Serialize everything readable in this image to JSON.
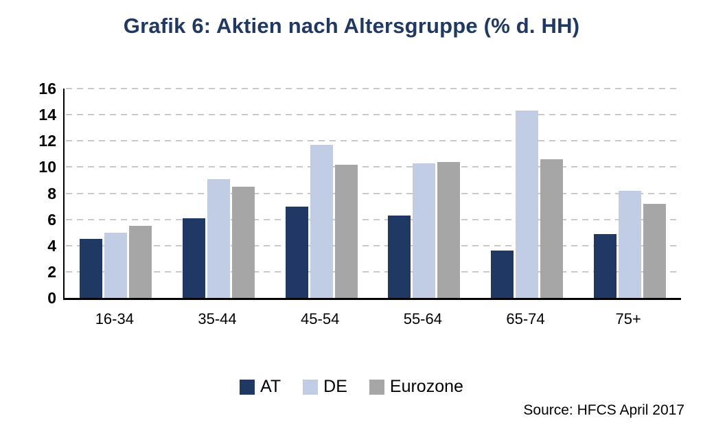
{
  "title": "Grafik 6: Aktien nach Altersgruppe (% d. HH)",
  "source": "Source: HFCS April 2017",
  "colors": {
    "title": "#1F3864",
    "axis": "#000000",
    "gridline": "#C9C9C9",
    "background": "#FFFFFF"
  },
  "chart_data": {
    "type": "bar",
    "title": "Grafik 6: Aktien nach Altersgruppe (% d. HH)",
    "xlabel": "",
    "ylabel": "",
    "categories": [
      "16-34",
      "35-44",
      "45-54",
      "55-64",
      "65-74",
      "75+"
    ],
    "series": [
      {
        "name": "AT",
        "color": "#1F3864",
        "values": [
          4.5,
          6.1,
          7.0,
          6.3,
          3.6,
          4.9
        ]
      },
      {
        "name": "DE",
        "color": "#C1CDE4",
        "values": [
          5.0,
          9.1,
          11.7,
          10.3,
          14.3,
          8.2
        ]
      },
      {
        "name": "Eurozone",
        "color": "#A6A6A6",
        "values": [
          5.5,
          8.5,
          10.2,
          10.4,
          10.6,
          7.2
        ]
      }
    ],
    "ylim": [
      0,
      16
    ],
    "yticks": [
      0,
      2,
      4,
      6,
      8,
      10,
      12,
      14,
      16
    ],
    "grid": "horizontal-dashed",
    "legend_position": "bottom-center",
    "annotations": [
      "Source: HFCS April 2017"
    ]
  }
}
